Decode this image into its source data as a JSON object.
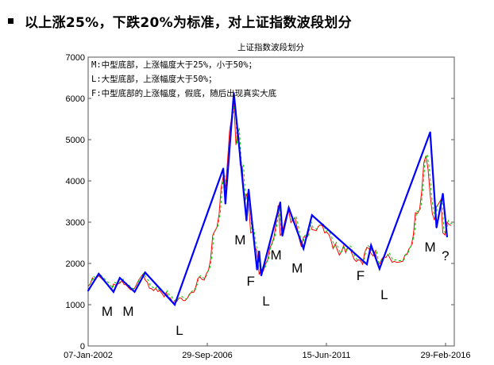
{
  "slide": {
    "heading": "以上涨25%，下跌20%为标准，对上证指数波段划分",
    "bullet_icon": "square-bullet"
  },
  "chart_data": {
    "type": "line",
    "title": "上证指数波段划分",
    "xlabel": "",
    "ylabel": "",
    "ylim": [
      0,
      7000
    ],
    "yticks": [
      "0",
      "1000",
      "2000",
      "3000",
      "4000",
      "5000",
      "6000",
      "7000"
    ],
    "xticks": [
      "07-Jan-2002",
      "29-Sep-2006",
      "15-Jun-2011",
      "29-Feb-2016"
    ],
    "grid": false,
    "legend_text": [
      "M:中型底部，上涨幅度大于25%，小于50%；",
      "L:大型底部，上涨幅度大于50%；",
      "F:中型底部的上涨幅度，假底，随后出现真实大底"
    ],
    "colors": {
      "swing": "#0000ff",
      "index_up": "#ff0000",
      "index_down": "#00cc00"
    },
    "index_series": {
      "start": "2002-01",
      "frequency": "monthly",
      "values": [
        1450,
        1500,
        1650,
        1600,
        1650,
        1700,
        1650,
        1600,
        1550,
        1500,
        1440,
        1360,
        1500,
        1480,
        1500,
        1520,
        1580,
        1490,
        1480,
        1420,
        1370,
        1350,
        1400,
        1500,
        1600,
        1680,
        1740,
        1600,
        1550,
        1400,
        1390,
        1340,
        1400,
        1320,
        1340,
        1270,
        1190,
        1300,
        1180,
        1160,
        1060,
        1080,
        1080,
        1160,
        1160,
        1100,
        1100,
        1160,
        1260,
        1300,
        1300,
        1440,
        1640,
        1670,
        1610,
        1600,
        1750,
        1840,
        2100,
        2680,
        2790,
        2880,
        3180,
        3840,
        4110,
        3820,
        4470,
        5220,
        5550,
        5950,
        4870,
        5260,
        4380,
        4350,
        3470,
        3690,
        3430,
        2740,
        2780,
        2400,
        2290,
        1730,
        1870,
        1820,
        1990,
        2080,
        2370,
        2480,
        2630,
        2960,
        3410,
        2670,
        2780,
        2990,
        3190,
        3280,
        2990,
        3050,
        3110,
        2870,
        2590,
        2400,
        2640,
        2640,
        2650,
        2980,
        2820,
        2810,
        2790,
        2900,
        2930,
        2910,
        2740,
        2760,
        2700,
        2570,
        2360,
        2470,
        2330,
        2200,
        2290,
        2430,
        2260,
        2400,
        2370,
        2230,
        2100,
        2050,
        2090,
        2070,
        1980,
        2270,
        2390,
        2360,
        2240,
        2180,
        2300,
        1980,
        1990,
        2100,
        2170,
        2140,
        2220,
        2120,
        2030,
        2050,
        2030,
        2030,
        2040,
        2050,
        2200,
        2220,
        2360,
        2420,
        2680,
        3230,
        3210,
        3310,
        3750,
        4440,
        4610,
        4280,
        3660,
        3210,
        3050,
        3380,
        3450,
        3540,
        2740,
        2690,
        3000,
        2940,
        2920
      ]
    },
    "swing_series": [
      {
        "date": "2002-01",
        "value": 1340
      },
      {
        "date": "2002-06",
        "value": 1750
      },
      {
        "date": "2003-01",
        "value": 1310,
        "label": "M"
      },
      {
        "date": "2003-04",
        "value": 1650
      },
      {
        "date": "2003-11",
        "value": 1310,
        "label": "M"
      },
      {
        "date": "2004-04",
        "value": 1780
      },
      {
        "date": "2005-06",
        "value": 1000,
        "label": "L"
      },
      {
        "date": "2007-05",
        "value": 4300
      },
      {
        "date": "2007-06",
        "value": 3450
      },
      {
        "date": "2007-10",
        "value": 6130
      },
      {
        "date": "2008-04",
        "value": 3040,
        "label": "M"
      },
      {
        "date": "2008-05",
        "value": 3790
      },
      {
        "date": "2008-09",
        "value": 1850,
        "label": "F"
      },
      {
        "date": "2008-10",
        "value": 2290
      },
      {
        "date": "2008-11",
        "value": 1710,
        "label": "L"
      },
      {
        "date": "2009-08",
        "value": 3480
      },
      {
        "date": "2009-09",
        "value": 2670,
        "label": "M"
      },
      {
        "date": "2009-12",
        "value": 3350
      },
      {
        "date": "2010-07",
        "value": 2360,
        "label": "M"
      },
      {
        "date": "2010-11",
        "value": 3170
      },
      {
        "date": "2013-01",
        "value": 1980,
        "label": "F"
      },
      {
        "date": "2013-03",
        "value": 2440
      },
      {
        "date": "2013-07",
        "value": 1870,
        "label": "L"
      },
      {
        "date": "2015-07",
        "value": 5180
      },
      {
        "date": "2015-10",
        "value": 2870,
        "label": "M"
      },
      {
        "date": "2016-01",
        "value": 3690
      },
      {
        "date": "2016-03",
        "value": 2650,
        "label": "?"
      }
    ]
  }
}
